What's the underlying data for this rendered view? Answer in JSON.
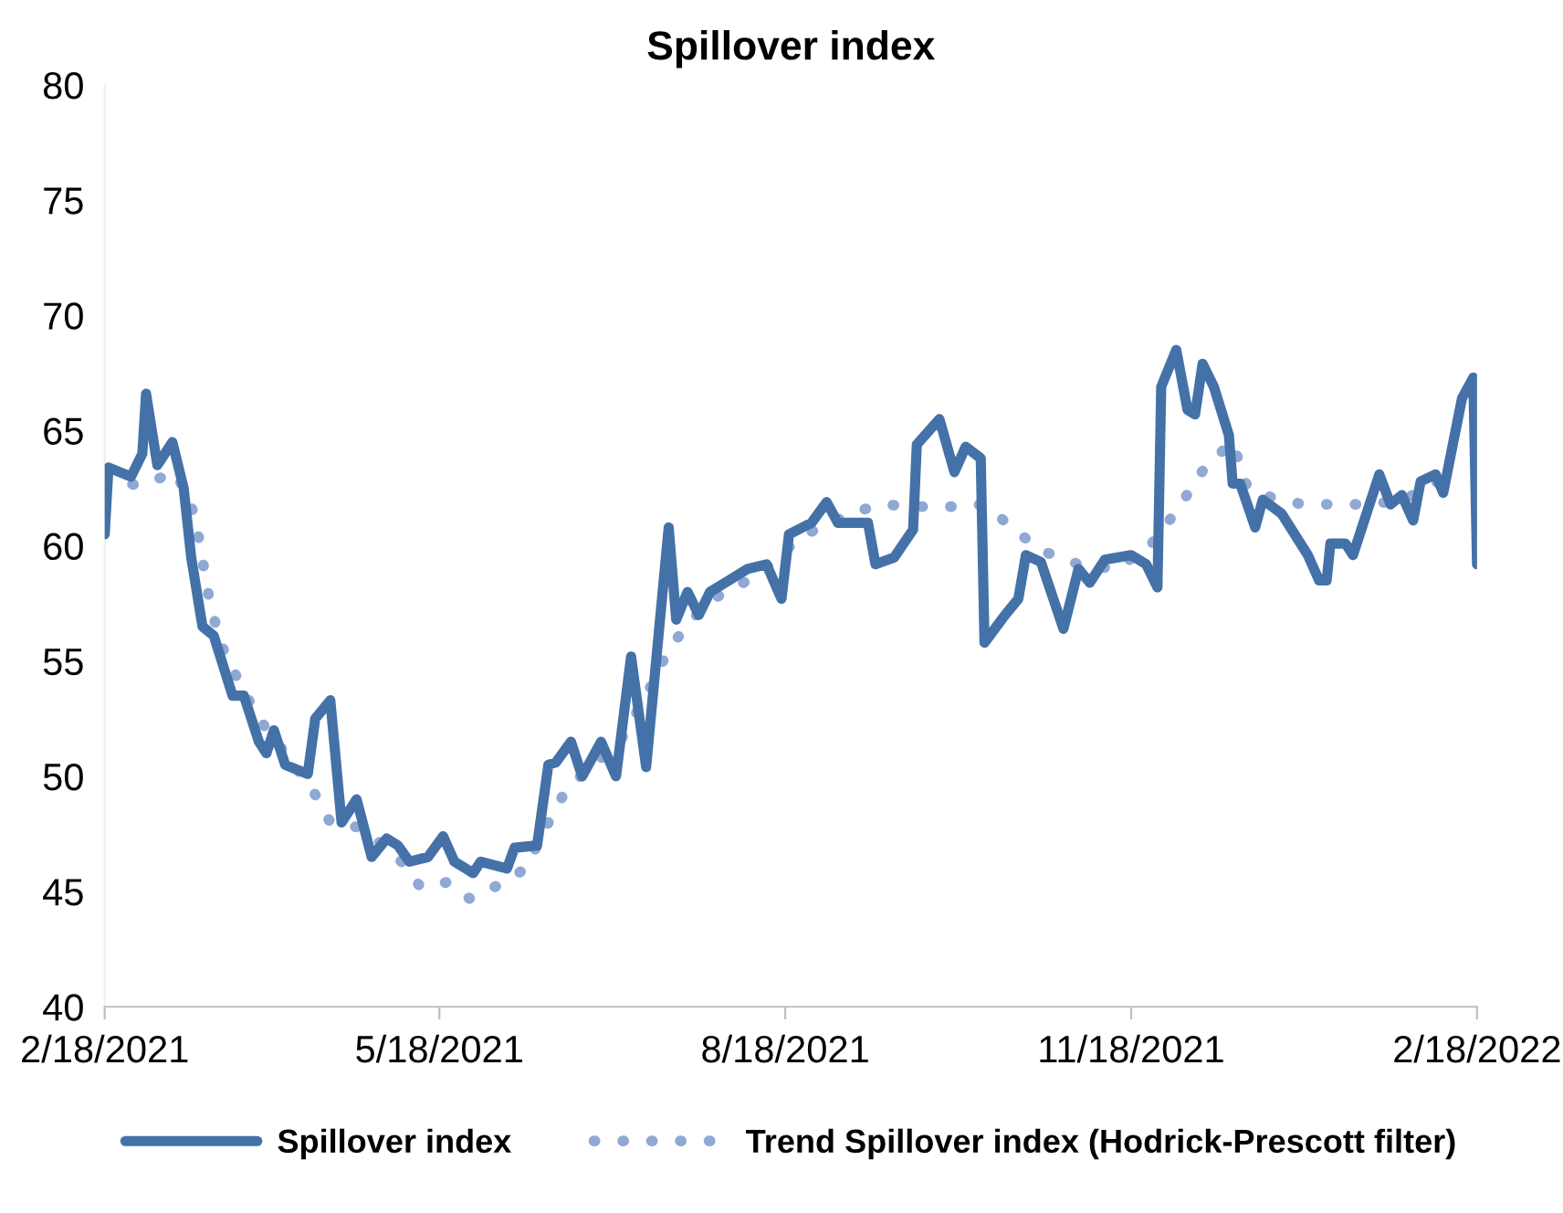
{
  "chart_data": {
    "type": "line",
    "title": "Spillover index",
    "xlim": [
      "2021-02-18",
      "2022-02-18"
    ],
    "xticks": [
      {
        "value": "2021-02-18",
        "label": "2/18/2021"
      },
      {
        "value": "2021-05-18",
        "label": "5/18/2021"
      },
      {
        "value": "2021-08-18",
        "label": "8/18/2021"
      },
      {
        "value": "2021-11-18",
        "label": "11/18/2021"
      },
      {
        "value": "2022-02-18",
        "label": "2/18/2022"
      }
    ],
    "ylim": [
      40,
      80
    ],
    "yticks": [
      40,
      45,
      50,
      55,
      60,
      65,
      70,
      75,
      80
    ],
    "grid": false,
    "legend": "bottom",
    "marker": "none",
    "series": [
      {
        "name": "Spillover index",
        "color": "#4471a8",
        "line_style": "solid",
        "x": [
          "2021-02-18",
          "2021-02-19",
          "2021-02-22",
          "2021-02-25",
          "2021-02-28",
          "2021-03-01",
          "2021-03-04",
          "2021-03-08",
          "2021-03-11",
          "2021-03-13",
          "2021-03-16",
          "2021-03-19",
          "2021-03-24",
          "2021-03-27",
          "2021-03-31",
          "2021-04-02",
          "2021-04-04",
          "2021-04-07",
          "2021-04-13",
          "2021-04-15",
          "2021-04-19",
          "2021-04-22",
          "2021-04-26",
          "2021-04-30",
          "2021-05-04",
          "2021-05-07",
          "2021-05-10",
          "2021-05-15",
          "2021-05-19",
          "2021-05-22",
          "2021-05-27",
          "2021-05-29",
          "2021-06-05",
          "2021-06-07",
          "2021-06-13",
          "2021-06-16",
          "2021-06-18",
          "2021-06-22",
          "2021-06-25",
          "2021-06-30",
          "2021-07-04",
          "2021-07-08",
          "2021-07-12",
          "2021-07-18",
          "2021-07-20",
          "2021-07-23",
          "2021-07-26",
          "2021-07-29",
          "2021-08-03",
          "2021-08-08",
          "2021-08-13",
          "2021-08-17",
          "2021-08-19",
          "2021-08-25",
          "2021-08-29",
          "2021-09-01",
          "2021-09-09",
          "2021-09-11",
          "2021-09-16",
          "2021-09-21",
          "2021-09-22",
          "2021-09-28",
          "2021-10-02",
          "2021-10-05",
          "2021-10-09",
          "2021-10-10",
          "2021-10-15",
          "2021-10-19",
          "2021-10-21",
          "2021-10-25",
          "2021-10-31",
          "2021-11-04",
          "2021-11-07",
          "2021-11-11",
          "2021-11-18",
          "2021-11-22",
          "2021-11-25",
          "2021-11-26",
          "2021-11-30",
          "2021-12-03",
          "2021-12-05",
          "2021-12-07",
          "2021-12-10",
          "2021-12-14",
          "2021-12-15",
          "2021-12-17",
          "2021-12-21",
          "2021-12-23",
          "2021-12-28",
          "2022-01-04",
          "2022-01-07",
          "2022-01-09",
          "2022-01-10",
          "2022-01-14",
          "2022-01-16",
          "2022-01-23",
          "2022-01-26",
          "2022-01-29",
          "2022-02-01",
          "2022-02-03",
          "2022-02-07",
          "2022-02-09",
          "2022-02-14",
          "2022-02-17",
          "2022-02-18"
        ],
        "values": [
          60.5,
          63.4,
          63.2,
          63.0,
          64.0,
          66.6,
          63.5,
          64.5,
          62.5,
          59.5,
          56.5,
          56.1,
          53.5,
          53.5,
          51.5,
          51.0,
          52.0,
          50.5,
          50.1,
          52.5,
          53.3,
          48.0,
          49.0,
          46.5,
          47.3,
          47.0,
          46.3,
          46.5,
          47.4,
          46.3,
          45.8,
          46.3,
          46.0,
          46.9,
          47.0,
          50.5,
          50.6,
          51.5,
          50.0,
          51.5,
          50.0,
          55.2,
          50.4,
          60.8,
          56.8,
          58.0,
          57.0,
          58.0,
          58.5,
          59.0,
          59.2,
          57.7,
          60.5,
          61.0,
          61.9,
          61.0,
          61.0,
          59.2,
          59.5,
          60.7,
          64.4,
          65.5,
          63.2,
          64.3,
          63.8,
          55.8,
          56.9,
          57.7,
          59.6,
          59.3,
          56.4,
          59.0,
          58.4,
          59.4,
          59.6,
          59.2,
          58.2,
          66.9,
          68.5,
          65.9,
          65.7,
          67.9,
          66.9,
          64.8,
          62.7,
          62.7,
          60.8,
          62.0,
          61.4,
          59.6,
          58.5,
          58.5,
          60.1,
          60.1,
          59.6,
          63.1,
          61.8,
          62.2,
          61.1,
          62.8,
          63.1,
          62.3,
          66.4,
          67.3,
          59.2
        ]
      },
      {
        "name": "Trend Spillover index (Hodrick-Prescott filter)",
        "color": "#8fa8d4",
        "line_style": "dotted",
        "x": [
          "2021-02-18",
          "2021-02-27",
          "2021-03-09",
          "2021-03-14",
          "2021-03-18",
          "2021-03-21",
          "2021-03-26",
          "2021-03-31",
          "2021-04-07",
          "2021-04-14",
          "2021-04-19",
          "2021-04-26",
          "2021-05-06",
          "2021-05-13",
          "2021-05-20",
          "2021-05-26",
          "2021-06-03",
          "2021-06-10",
          "2021-06-16",
          "2021-06-21",
          "2021-06-28",
          "2021-07-05",
          "2021-07-12",
          "2021-07-18",
          "2021-07-24",
          "2021-07-31",
          "2021-08-08",
          "2021-08-15",
          "2021-08-22",
          "2021-08-30",
          "2021-09-06",
          "2021-09-13",
          "2021-09-21",
          "2021-10-01",
          "2021-10-10",
          "2021-10-18",
          "2021-10-25",
          "2021-11-04",
          "2021-11-14",
          "2021-11-23",
          "2021-11-30",
          "2021-12-08",
          "2021-12-15",
          "2021-12-19",
          "2021-12-27",
          "2022-01-03",
          "2022-01-13",
          "2022-01-22",
          "2022-02-01",
          "2022-02-10"
        ],
        "values": [
          63.0,
          62.6,
          63.2,
          61.3,
          57.5,
          55.7,
          54.0,
          52.5,
          51.0,
          49.5,
          48.0,
          47.8,
          46.7,
          45.2,
          45.4,
          44.7,
          45.3,
          46.0,
          48.0,
          49.5,
          50.5,
          51.5,
          53.5,
          55.5,
          56.8,
          57.8,
          58.5,
          59.3,
          60.4,
          61.0,
          61.5,
          61.8,
          61.7,
          61.7,
          61.8,
          60.7,
          59.8,
          59.2,
          59.0,
          60.0,
          61.5,
          63.5,
          64.5,
          62.5,
          62.0,
          61.8,
          61.8,
          61.8,
          62.2,
          63.0
        ]
      }
    ]
  }
}
